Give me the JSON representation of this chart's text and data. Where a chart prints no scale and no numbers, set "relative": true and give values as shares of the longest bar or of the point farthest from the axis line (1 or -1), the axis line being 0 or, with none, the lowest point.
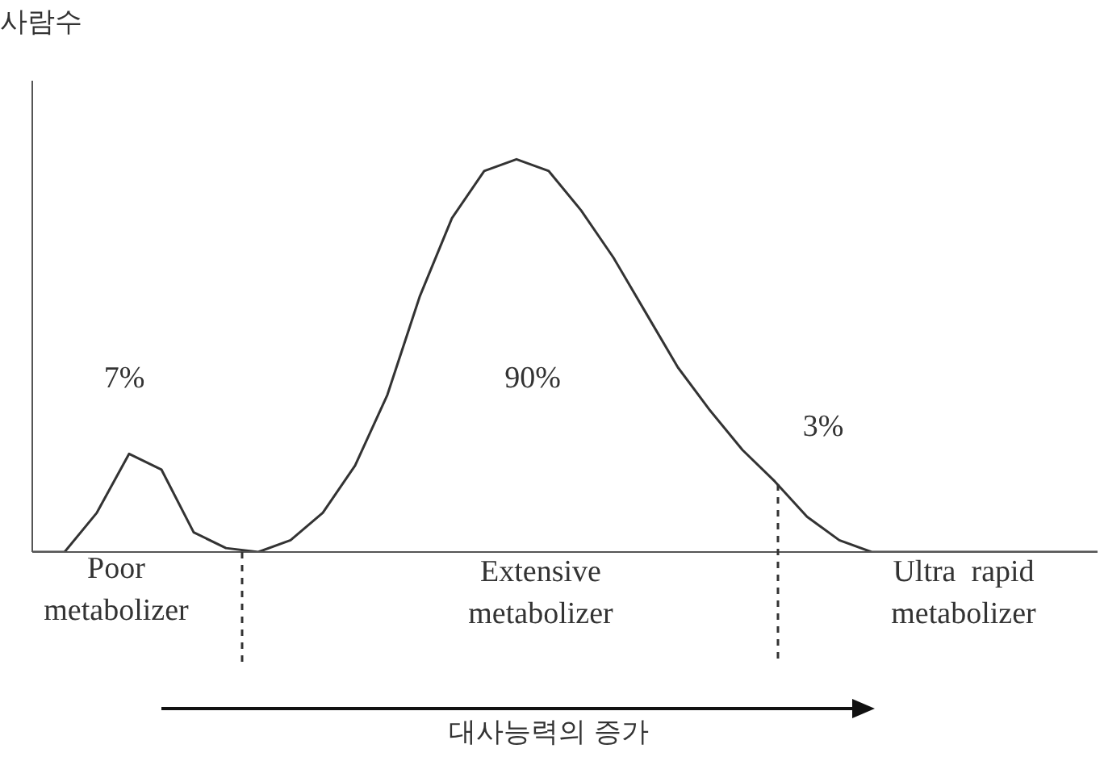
{
  "chart_data": {
    "type": "line",
    "relative": true,
    "ylabel": "사람수",
    "marker": "none",
    "line_style": "solid",
    "categories": [
      null,
      null,
      null,
      null,
      null,
      null,
      null,
      null,
      null,
      null,
      null,
      null,
      null,
      null,
      null,
      null,
      null,
      null,
      null,
      null,
      null,
      null,
      null,
      null,
      null,
      null,
      null,
      null,
      null,
      null,
      null,
      null,
      null,
      null
    ],
    "series": [
      {
        "color": "#333333",
        "values": [
          0,
          0,
          0.1,
          0.25,
          0.21,
          0.05,
          0.01,
          0,
          0.03,
          0.1,
          0.22,
          0.4,
          0.65,
          0.85,
          0.97,
          1,
          0.97,
          0.87,
          0.75,
          0.61,
          0.47,
          0.36,
          0.26,
          0.18,
          0.09,
          0.03,
          0,
          0,
          0,
          0,
          0,
          0,
          0,
          0
        ]
      }
    ],
    "annotations": [
      "7%",
      "90%",
      "3%",
      "Poor\nmetabolizer",
      "Extensive\nmetabolizer",
      "Ultra  rapid\nmetabolizer",
      "대사능력의 증가"
    ]
  }
}
